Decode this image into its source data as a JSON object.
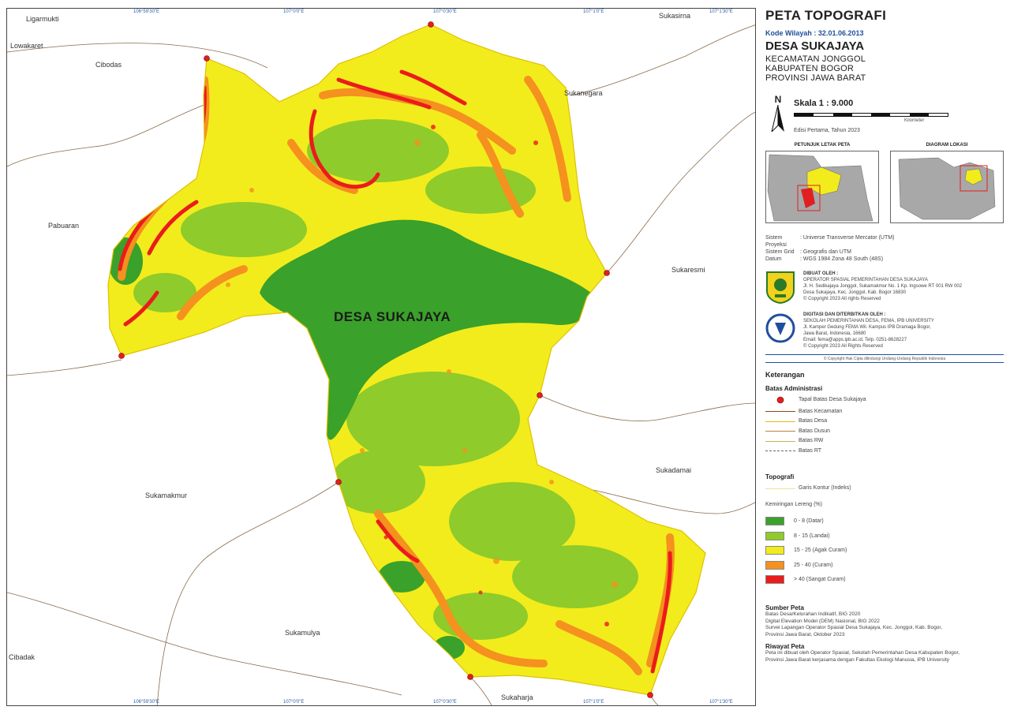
{
  "map": {
    "village_label": "DESA SUKAJAYA",
    "places": [
      {
        "id": "ligarmukti",
        "name": "Ligarmukti"
      },
      {
        "id": "lowakaret",
        "name": "Lowakaret"
      },
      {
        "id": "cibodas",
        "name": "Cibodas"
      },
      {
        "id": "sukasirna",
        "name": "Sukasirna"
      },
      {
        "id": "sukanegara",
        "name": "Sukanegara"
      },
      {
        "id": "pabuaran",
        "name": "Pabuaran"
      },
      {
        "id": "sukaresmi",
        "name": "Sukaresmi"
      },
      {
        "id": "sukamakmur",
        "name": "Sukamakmur"
      },
      {
        "id": "sukadamai",
        "name": "Sukadamai"
      },
      {
        "id": "sukamulya",
        "name": "Sukamulya"
      },
      {
        "id": "cibadak",
        "name": "Cibadak"
      },
      {
        "id": "sukaharja",
        "name": "Sukaharja"
      }
    ],
    "top_ticks": [
      "106°59'30\"E",
      "107°0'0\"E",
      "107°0'30\"E",
      "107°1'0\"E",
      "107°1'30\"E"
    ],
    "bottom_ticks": [
      "106°59'30\"E",
      "107°0'0\"E",
      "107°0'30\"E",
      "107°1'0\"E",
      "107°1'30\"E"
    ]
  },
  "panel": {
    "title": "PETA TOPOGRAFI",
    "code": "Kode Wilayah : 32.01.06.2013",
    "village": "DESA SUKAJAYA",
    "admin": [
      "KECAMATAN JONGGOL",
      "KABUPATEN BOGOR",
      "PROVINSI JAWA BARAT"
    ],
    "north": "N",
    "scale": "Skala 1 : 9.000",
    "scale_unit": "Kilometer",
    "edition": "Edisi Pertama, Tahun 2023",
    "inset_left_title": "PETUNJUK LETAK PETA",
    "inset_right_title": "DIAGRAM LOKASI",
    "projection": [
      {
        "key": "Sistem Proyeksi",
        "value": ": Universe Transverse Mercator (UTM)"
      },
      {
        "key": "Sistem Grid",
        "value": ": Geografis dan UTM"
      },
      {
        "key": "Datum",
        "value": ": WGS 1984 Zona 48 South (48S)"
      }
    ],
    "credit1": {
      "head": "DIBUAT OLEH :",
      "lines": [
        "OPERATOR SPASIAL PEMERINTAHAN DESA SUKAJAYA",
        "Jl. H. Sedikajaya Jonggol, Sukamakmur No. 1 Kp. Ingsowe RT 001 RW 002",
        "Desa Sukajaya, Kec. Jonggol, Kab. Bogor 16830",
        "© Copyright 2023 All rights Reserved"
      ]
    },
    "credit2": {
      "head": "DIGITASI DAN DITERBITKAN OLEH :",
      "lines": [
        "SEKOLAH PEMERINTAHAN DESA, FEMA, IPB UNIVERSITY",
        "Jl. Kamper Gedung FEMA Wil. Kampus IPB Dramaga Bogor,",
        "Jawa Barat, Indonesia, 16680",
        "Email: fema@apps.ipb.ac.id, Telp. 0251-8628227",
        "© Copyright 2023 All Rights Reserved"
      ]
    },
    "copyright": "© Copyright Hak Cipta dilindungi Undang-Undang Republik Indonesia",
    "legend_title": "Keterangan",
    "admin_title": "Batas Administrasi",
    "admin_items": [
      {
        "label": "Tapal Batas Desa Sukajaya",
        "kind": "point",
        "color": "#e02020"
      },
      {
        "label": "Batas Kecamatan",
        "kind": "line",
        "color": "#8a4a1a"
      },
      {
        "label": "Batas Desa",
        "kind": "line",
        "color": "#e0c000"
      },
      {
        "label": "Batas Dusun",
        "kind": "line",
        "color": "#c08040"
      },
      {
        "label": "Batas RW",
        "kind": "line",
        "color": "#c8b060"
      },
      {
        "label": "Batas RT",
        "kind": "dash",
        "color": "#666666"
      }
    ],
    "topo_title": "Topografi",
    "contour_label": "Garis Kontur (Indeks)",
    "slope_title": "Kemiringan Lereng (%)",
    "slope_classes": [
      {
        "label": "0 - 8 (Datar)",
        "color": "#3aa12a"
      },
      {
        "label": "8 - 15 (Landai)",
        "color": "#8fcb2a"
      },
      {
        "label": "15 - 25 (Agak Curam)",
        "color": "#f2ec1c"
      },
      {
        "label": "25 - 40 (Curam)",
        "color": "#f5911e"
      },
      {
        "label": "> 40 (Sangat Curam)",
        "color": "#ea1c1c"
      }
    ],
    "source_title": "Sumber Peta",
    "source_lines": [
      "Batas Desa/Kelurahan Indikatif, BIG 2020",
      "Digital Elevation Model (DEM) Nasional, BIG 2022",
      "Survei Lapangan Operator Spasial Desa Sukajaya, Kec. Jonggol, Kab. Bogor,",
      "Provinsi Jawa Barat, Oktober 2023"
    ],
    "history_title": "Riwayat Peta",
    "history_lines": [
      "Peta ini dibuat oleh Operator Spasial, Sekolah Pemerintahan Desa Kabupaten Bogor,",
      "Provinsi Jawa Barat kerjasama dengan Fakultas Ekologi Manusia, IPB University"
    ]
  }
}
